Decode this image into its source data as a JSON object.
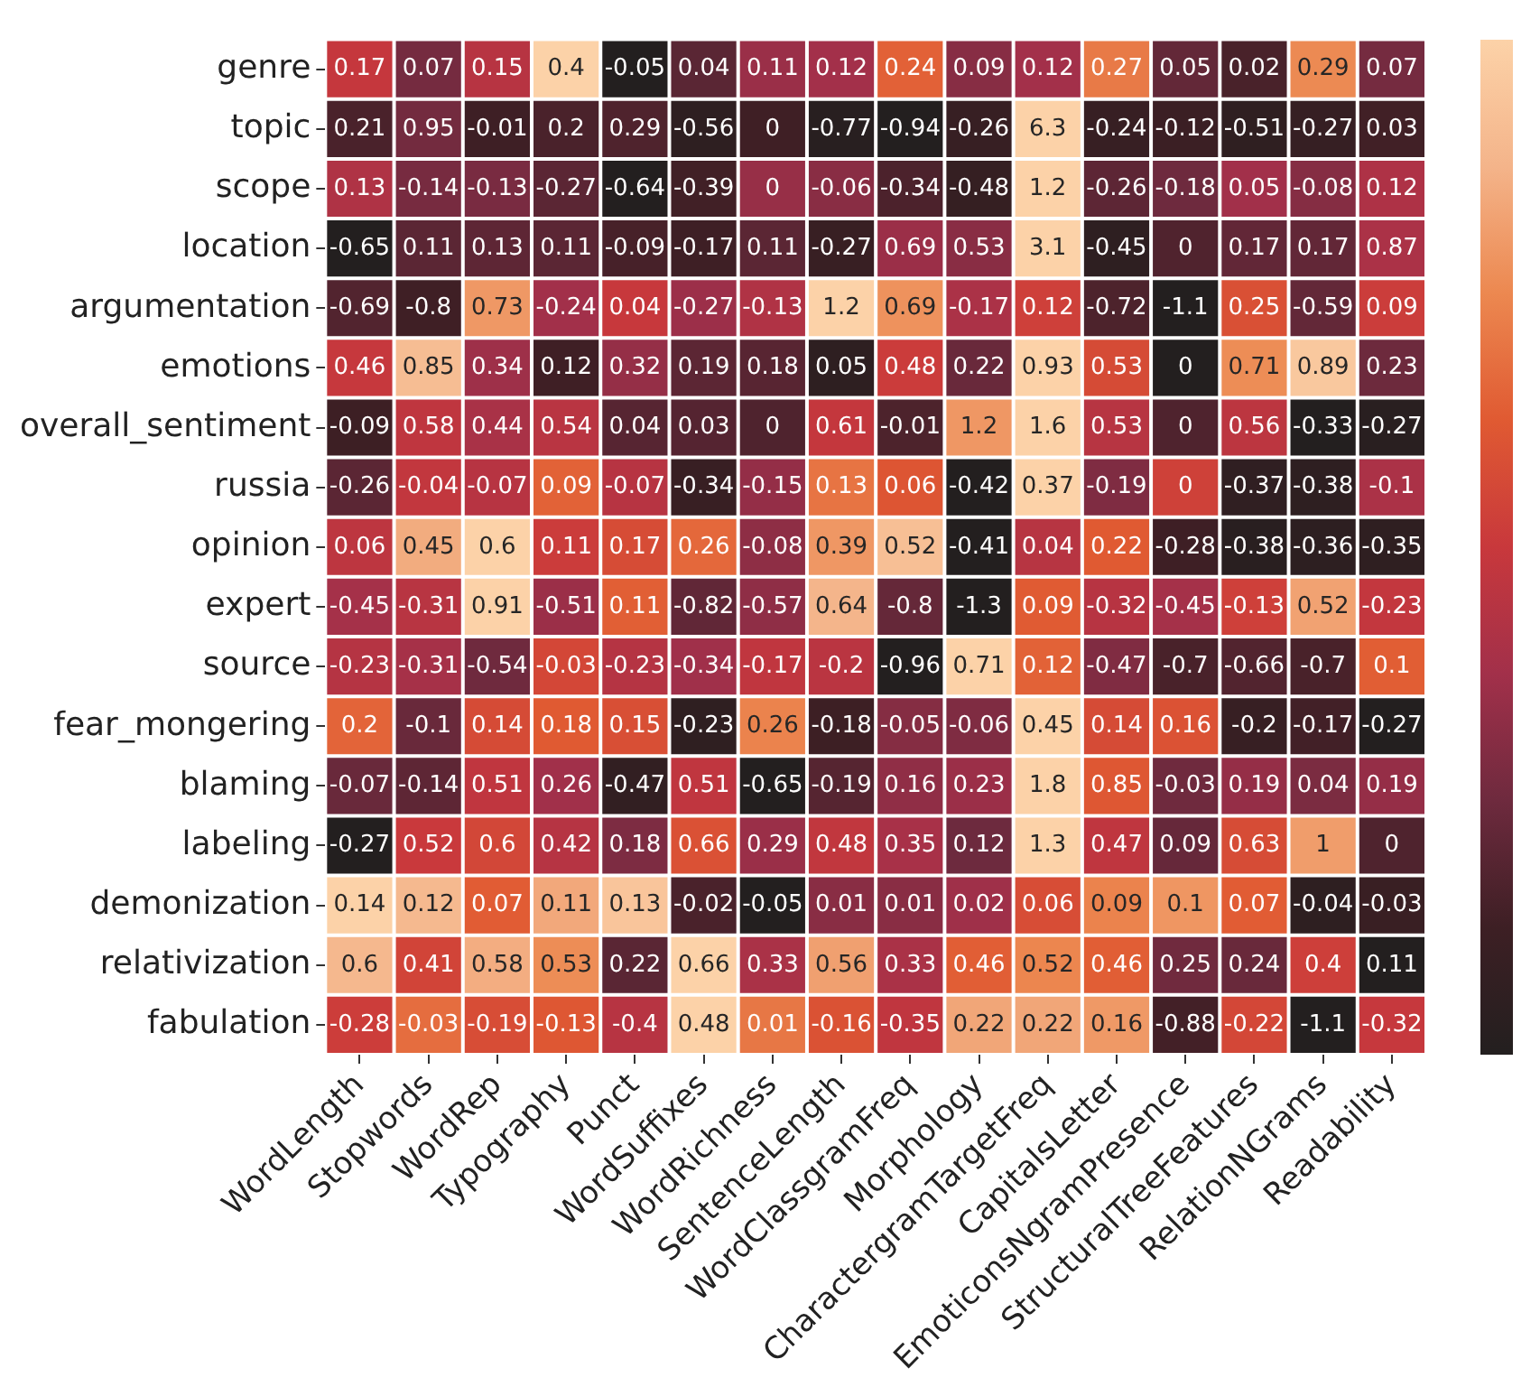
{
  "chart_data": {
    "type": "heatmap",
    "categories": [
      "WordLength",
      "Stopwords",
      "WordRep",
      "Typography",
      "Punct",
      "WordSuffixes",
      "WordRichness",
      "SentenceLength",
      "WordClassgramFreq",
      "Morphology",
      "CharactergramTargetFreq",
      "CapitalsLetter",
      "EmoticonsNgramPresence",
      "StructuralTreeFeatures",
      "RelationNGrams",
      "Readability"
    ],
    "y_categories": [
      "genre",
      "topic",
      "scope",
      "location",
      "argumentation",
      "emotions",
      "overall_sentiment",
      "russia",
      "opinion",
      "expert",
      "source",
      "fear_mongering",
      "blaming",
      "labeling",
      "demonization",
      "relativization",
      "fabulation"
    ],
    "cells": [
      [
        0.17,
        0.07,
        0.15,
        0.4,
        -0.05,
        0.04,
        0.11,
        0.12,
        0.24,
        0.09,
        0.12,
        0.27,
        0.05,
        0.02,
        0.29,
        0.07
      ],
      [
        0.21,
        0.95,
        -0.01,
        0.2,
        0.29,
        -0.56,
        0,
        -0.77,
        -0.94,
        -0.26,
        6.3,
        -0.24,
        -0.12,
        -0.51,
        -0.27,
        0.03
      ],
      [
        0.13,
        -0.14,
        -0.13,
        -0.27,
        -0.64,
        -0.39,
        0,
        -0.06,
        -0.34,
        -0.48,
        1.2,
        -0.26,
        -0.18,
        0.05,
        -0.08,
        0.12
      ],
      [
        -0.65,
        0.11,
        0.13,
        0.11,
        -0.09,
        -0.17,
        0.11,
        -0.27,
        0.69,
        0.53,
        3.1,
        -0.45,
        0,
        0.17,
        0.17,
        0.87
      ],
      [
        -0.69,
        -0.8,
        0.73,
        -0.24,
        0.04,
        -0.27,
        -0.13,
        1.2,
        0.69,
        -0.17,
        0.12,
        -0.72,
        -1.1,
        0.25,
        -0.59,
        0.09
      ],
      [
        0.46,
        0.85,
        0.34,
        0.12,
        0.32,
        0.19,
        0.18,
        0.05,
        0.48,
        0.22,
        0.93,
        0.53,
        0,
        0.71,
        0.89,
        0.23
      ],
      [
        -0.09,
        0.58,
        0.44,
        0.54,
        0.04,
        0.03,
        0,
        0.61,
        -0.01,
        1.2,
        1.6,
        0.53,
        0,
        0.56,
        -0.33,
        -0.27
      ],
      [
        -0.26,
        -0.04,
        -0.07,
        0.09,
        -0.07,
        -0.34,
        -0.15,
        0.13,
        0.06,
        -0.42,
        0.37,
        -0.19,
        0,
        -0.37,
        -0.38,
        -0.1
      ],
      [
        0.06,
        0.45,
        0.6,
        0.11,
        0.17,
        0.26,
        -0.08,
        0.39,
        0.52,
        -0.41,
        0.04,
        0.22,
        -0.28,
        -0.38,
        -0.36,
        -0.35
      ],
      [
        -0.45,
        -0.31,
        0.91,
        -0.51,
        0.11,
        -0.82,
        -0.57,
        0.64,
        -0.8,
        -1.3,
        0.09,
        -0.32,
        -0.45,
        -0.13,
        0.52,
        -0.23
      ],
      [
        -0.23,
        -0.31,
        -0.54,
        -0.03,
        -0.23,
        -0.34,
        -0.17,
        -0.2,
        -0.96,
        0.71,
        0.12,
        -0.47,
        -0.7,
        -0.66,
        -0.7,
        0.1
      ],
      [
        0.2,
        -0.1,
        0.14,
        0.18,
        0.15,
        -0.23,
        0.26,
        -0.18,
        -0.05,
        -0.06,
        0.45,
        0.14,
        0.16,
        -0.2,
        -0.17,
        -0.27
      ],
      [
        -0.07,
        -0.14,
        0.51,
        0.26,
        -0.47,
        0.51,
        -0.65,
        -0.19,
        0.16,
        0.23,
        1.8,
        0.85,
        -0.03,
        0.19,
        0.04,
        0.19
      ],
      [
        -0.27,
        0.52,
        0.6,
        0.42,
        0.18,
        0.66,
        0.29,
        0.48,
        0.35,
        0.12,
        1.3,
        0.47,
        0.09,
        0.63,
        1,
        0
      ],
      [
        0.14,
        0.12,
        0.07,
        0.11,
        0.13,
        -0.02,
        -0.05,
        0.01,
        0.01,
        0.02,
        0.06,
        0.09,
        0.1,
        0.07,
        -0.04,
        -0.03
      ],
      [
        0.6,
        0.41,
        0.58,
        0.53,
        0.22,
        0.66,
        0.33,
        0.56,
        0.33,
        0.46,
        0.52,
        0.46,
        0.25,
        0.24,
        0.4,
        0.11
      ],
      [
        -0.28,
        -0.03,
        -0.19,
        -0.13,
        -0.4,
        0.48,
        0.01,
        -0.16,
        -0.35,
        0.22,
        0.22,
        0.16,
        -0.88,
        -0.22,
        -1.1,
        -0.32
      ]
    ],
    "data_labels": true
  }
}
